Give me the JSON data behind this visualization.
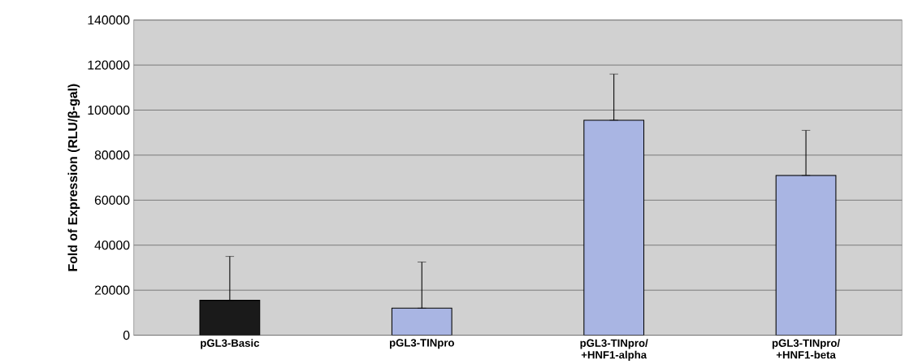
{
  "chart_data": {
    "type": "bar",
    "ylabel": "Fold of Expression (RLU/β-gal)",
    "categories": [
      "pGL3-Basic",
      "pGL3-TINpro",
      "pGL3-TINpro/ +HNF1-alpha",
      "pGL3-TINpro/ +HNF1-beta"
    ],
    "values": [
      15500,
      12000,
      95500,
      71000
    ],
    "colors": [
      "#1a1a1a",
      "#a9b5e3",
      "#a9b5e3",
      "#a9b5e3"
    ],
    "errors": [
      [
        15500,
        35000
      ],
      [
        12000,
        32500
      ],
      [
        95500,
        116000
      ],
      [
        71000,
        91000
      ]
    ],
    "ylim": [
      0,
      140000
    ],
    "yticks": [
      0,
      20000,
      40000,
      60000,
      80000,
      100000,
      120000,
      140000
    ],
    "grid": "y"
  }
}
